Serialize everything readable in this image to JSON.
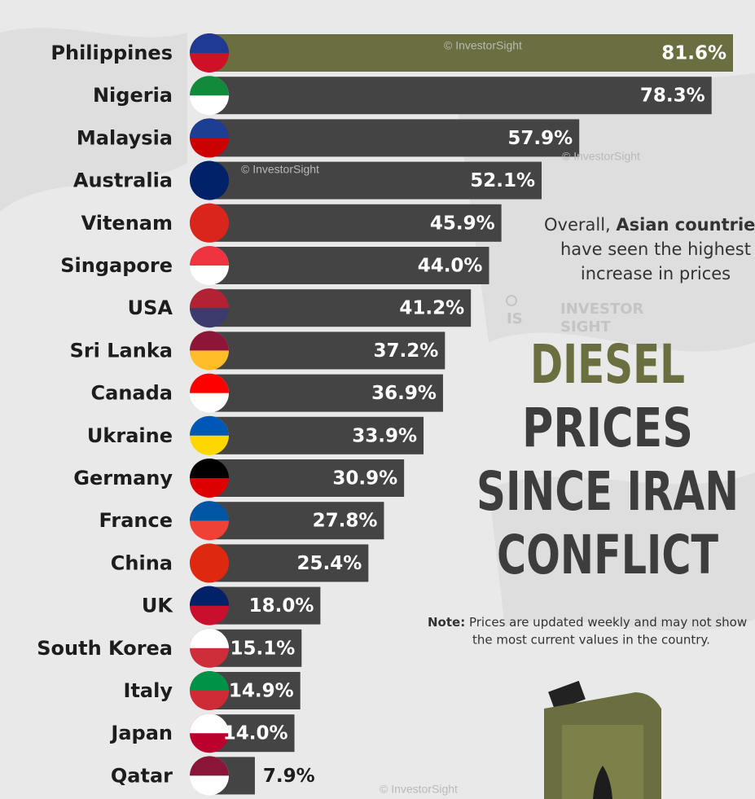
{
  "chart_data": {
    "type": "bar",
    "orientation": "horizontal",
    "title_lines": [
      "DIESEL",
      "PRICES",
      "SINCE IRAN",
      "CONFLICT"
    ],
    "categories": [
      "Philippines",
      "Nigeria",
      "Malaysia",
      "Australia",
      "Vitenam",
      "Singapore",
      "USA",
      "Sri Lanka",
      "Canada",
      "Ukraine",
      "Germany",
      "France",
      "China",
      "UK",
      "South Korea",
      "Italy",
      "Japan",
      "Qatar"
    ],
    "values": [
      81.6,
      78.3,
      57.9,
      52.1,
      45.9,
      44.0,
      41.2,
      37.2,
      36.9,
      33.9,
      30.9,
      27.8,
      25.4,
      18.0,
      15.1,
      14.9,
      14.0,
      7.9
    ],
    "value_labels": [
      "81.6%",
      "78.3%",
      "57.9%",
      "52.1%",
      "45.9%",
      "44.0%",
      "41.2%",
      "37.2%",
      "36.9%",
      "33.9%",
      "30.9%",
      "27.8%",
      "25.4%",
      "18.0%",
      "15.1%",
      "14.9%",
      "14.0%",
      "7.9%"
    ],
    "highlight_color": "#6b6e3e",
    "color": "#444444",
    "annotation": {
      "prefix": "Overall,",
      "bold": "Asian countrie",
      "lines": [
        "have seen the highest",
        "increase in prices"
      ]
    },
    "note": {
      "label": "Note:",
      "lines": [
        "Prices are updated weekly and may not show",
        "the most current values in the country."
      ]
    },
    "watermark": "© InvestorSight",
    "logo": [
      "INVESTOR",
      "SIGHT"
    ]
  }
}
